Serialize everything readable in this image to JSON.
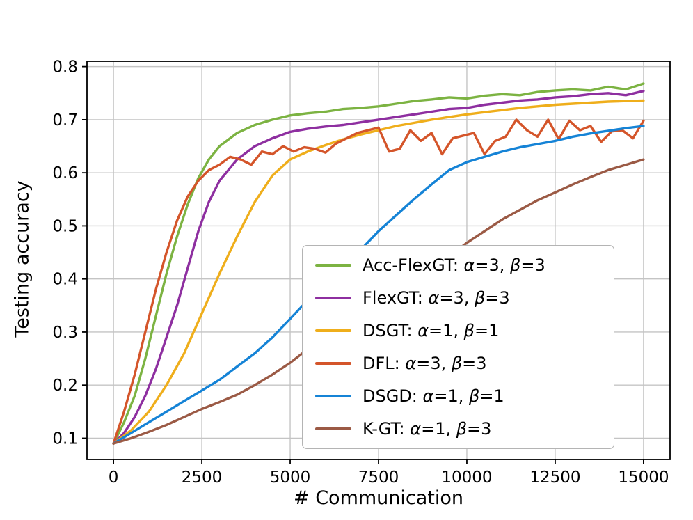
{
  "figure": {
    "background": "#ffffff"
  },
  "chart_data": {
    "type": "line",
    "title": "",
    "xlabel": "# Communication",
    "ylabel": "Testing accuracy",
    "xlim": [
      -750,
      15750
    ],
    "ylim": [
      0.06,
      0.81
    ],
    "xticks": [
      0,
      2500,
      5000,
      7500,
      10000,
      12500,
      15000
    ],
    "yticks": [
      0.1,
      0.2,
      0.3,
      0.4,
      0.5,
      0.6,
      0.7,
      0.8
    ],
    "grid": true,
    "legend_position": "center-right",
    "series": [
      {
        "label": "Acc-FlexGT: α=3, β=3",
        "color": "#7cb342",
        "x": [
          0,
          300,
          600,
          900,
          1200,
          1500,
          1800,
          2100,
          2400,
          2700,
          3000,
          3500,
          4000,
          4500,
          5000,
          5500,
          6000,
          6500,
          7000,
          7500,
          8000,
          8500,
          9000,
          9500,
          10000,
          10500,
          11000,
          11500,
          12000,
          12500,
          13000,
          13500,
          14000,
          14500,
          15000
        ],
        "y": [
          0.09,
          0.13,
          0.18,
          0.25,
          0.33,
          0.41,
          0.48,
          0.54,
          0.59,
          0.625,
          0.65,
          0.675,
          0.69,
          0.7,
          0.708,
          0.712,
          0.715,
          0.72,
          0.722,
          0.725,
          0.73,
          0.735,
          0.738,
          0.742,
          0.74,
          0.745,
          0.748,
          0.746,
          0.752,
          0.755,
          0.757,
          0.755,
          0.762,
          0.757,
          0.768
        ]
      },
      {
        "label": "FlexGT: α=3, β=3",
        "color": "#8e2fa0",
        "x": [
          0,
          300,
          600,
          900,
          1200,
          1500,
          1800,
          2100,
          2400,
          2700,
          3000,
          3500,
          4000,
          4500,
          5000,
          5500,
          6000,
          6500,
          7000,
          7500,
          8000,
          8500,
          9000,
          9500,
          10000,
          10500,
          11000,
          11500,
          12000,
          12500,
          13000,
          13500,
          14000,
          14500,
          15000
        ],
        "y": [
          0.09,
          0.11,
          0.14,
          0.18,
          0.23,
          0.29,
          0.35,
          0.42,
          0.49,
          0.545,
          0.585,
          0.625,
          0.65,
          0.665,
          0.677,
          0.683,
          0.687,
          0.69,
          0.695,
          0.7,
          0.705,
          0.71,
          0.715,
          0.72,
          0.722,
          0.728,
          0.732,
          0.736,
          0.738,
          0.742,
          0.744,
          0.748,
          0.75,
          0.746,
          0.754
        ]
      },
      {
        "label": "DSGT: α=1, β=1",
        "color": "#efae1b",
        "x": [
          0,
          500,
          1000,
          1500,
          2000,
          2500,
          3000,
          3500,
          4000,
          4500,
          5000,
          5500,
          6000,
          6500,
          7000,
          7500,
          8000,
          8500,
          9000,
          9500,
          10000,
          10500,
          11000,
          11500,
          12000,
          12500,
          13000,
          13500,
          14000,
          14500,
          15000
        ],
        "y": [
          0.09,
          0.115,
          0.15,
          0.2,
          0.26,
          0.335,
          0.41,
          0.48,
          0.545,
          0.595,
          0.625,
          0.64,
          0.652,
          0.663,
          0.672,
          0.68,
          0.688,
          0.694,
          0.7,
          0.705,
          0.71,
          0.714,
          0.718,
          0.722,
          0.725,
          0.728,
          0.73,
          0.732,
          0.734,
          0.735,
          0.736
        ]
      },
      {
        "label": "DFL: α=3, β=3",
        "color": "#d4552a",
        "x": [
          0,
          300,
          600,
          900,
          1200,
          1500,
          1800,
          2100,
          2400,
          2700,
          3000,
          3300,
          3600,
          3900,
          4200,
          4500,
          4800,
          5100,
          5400,
          5700,
          6000,
          6300,
          6600,
          6900,
          7200,
          7500,
          7800,
          8100,
          8400,
          8700,
          9000,
          9300,
          9600,
          9900,
          10200,
          10500,
          10800,
          11100,
          11400,
          11700,
          12000,
          12300,
          12600,
          12900,
          13200,
          13500,
          13800,
          14100,
          14400,
          14700,
          15000
        ],
        "y": [
          0.09,
          0.15,
          0.22,
          0.3,
          0.38,
          0.45,
          0.51,
          0.555,
          0.585,
          0.605,
          0.615,
          0.63,
          0.625,
          0.615,
          0.64,
          0.635,
          0.65,
          0.64,
          0.648,
          0.645,
          0.638,
          0.655,
          0.665,
          0.675,
          0.68,
          0.685,
          0.64,
          0.645,
          0.68,
          0.66,
          0.675,
          0.635,
          0.665,
          0.67,
          0.675,
          0.635,
          0.66,
          0.668,
          0.7,
          0.68,
          0.668,
          0.7,
          0.663,
          0.698,
          0.68,
          0.688,
          0.658,
          0.678,
          0.68,
          0.665,
          0.698
        ]
      },
      {
        "label": "DSGD: α=1, β=1",
        "color": "#1583d6",
        "x": [
          0,
          500,
          1000,
          1500,
          2000,
          2500,
          3000,
          3500,
          4000,
          4500,
          5000,
          5500,
          6000,
          6500,
          7000,
          7500,
          8000,
          8500,
          9000,
          9500,
          10000,
          10500,
          11000,
          11500,
          12000,
          12500,
          13000,
          13500,
          14000,
          14500,
          15000
        ],
        "y": [
          0.09,
          0.11,
          0.13,
          0.15,
          0.17,
          0.19,
          0.21,
          0.235,
          0.26,
          0.29,
          0.325,
          0.36,
          0.39,
          0.42,
          0.455,
          0.49,
          0.52,
          0.55,
          0.578,
          0.605,
          0.62,
          0.63,
          0.64,
          0.648,
          0.654,
          0.66,
          0.668,
          0.674,
          0.679,
          0.684,
          0.688
        ]
      },
      {
        "label": "K-GT: α=1, β=3",
        "color": "#9b5a45",
        "x": [
          0,
          500,
          1000,
          1500,
          2000,
          2500,
          3000,
          3500,
          4000,
          4500,
          5000,
          5500,
          6000,
          6500,
          7000,
          7500,
          8000,
          8500,
          9000,
          9500,
          10000,
          10500,
          11000,
          11500,
          12000,
          12500,
          13000,
          13500,
          14000,
          14500,
          15000
        ],
        "y": [
          0.09,
          0.1,
          0.112,
          0.125,
          0.14,
          0.155,
          0.168,
          0.182,
          0.2,
          0.22,
          0.242,
          0.268,
          0.29,
          0.312,
          0.335,
          0.357,
          0.378,
          0.4,
          0.42,
          0.443,
          0.468,
          0.49,
          0.512,
          0.53,
          0.548,
          0.563,
          0.578,
          0.592,
          0.605,
          0.615,
          0.625
        ]
      }
    ]
  }
}
